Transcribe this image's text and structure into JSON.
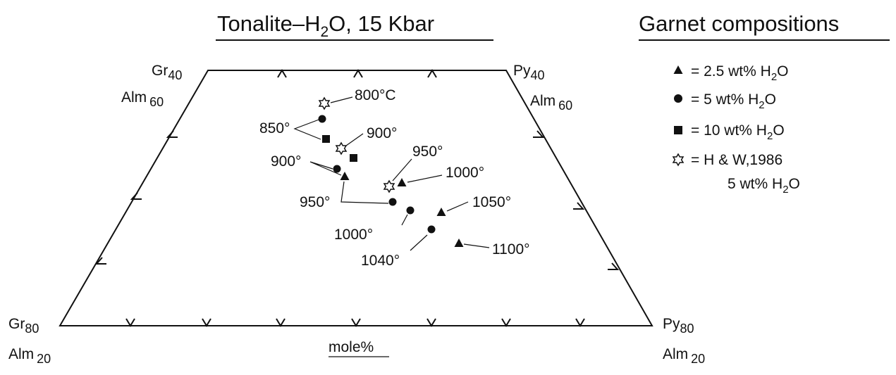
{
  "title": {
    "text": "Tonalite–H",
    "sub": "2",
    "rest": "O,  15 Kbar"
  },
  "legend": {
    "title": "Garnet compositions",
    "entries": [
      {
        "text": "=  2.5 wt% H",
        "sub": "2",
        "rest": "O"
      },
      {
        "text": "=  5 wt% H",
        "sub": "2",
        "rest": "O"
      },
      {
        "text": "=  10 wt% H",
        "sub": "2",
        "rest": "O"
      },
      {
        "text": "=  H & W,1986",
        "line2": "5 wt% H",
        "sub": "2",
        "rest": "O"
      }
    ]
  },
  "corners": {
    "top_left": {
      "a": "Gr",
      "a_sub": "40",
      "b": "Alm",
      "b_sub": "60"
    },
    "top_right": {
      "a": "Py",
      "a_sub": "40",
      "b": "Alm",
      "b_sub": "60"
    },
    "bottom_left": {
      "a": "Gr",
      "a_sub": "80",
      "b": "Alm",
      "b_sub": "20"
    },
    "bottom_right": {
      "a": "Py",
      "a_sub": "80",
      "b": "Alm",
      "b_sub": "20"
    }
  },
  "point_labels": [
    "800°C",
    "850°",
    "900°",
    "900°",
    "950°",
    "1000°",
    "950°",
    "1050°",
    "1000°",
    "1040°",
    "1100°"
  ],
  "axis_label": "mole%"
}
